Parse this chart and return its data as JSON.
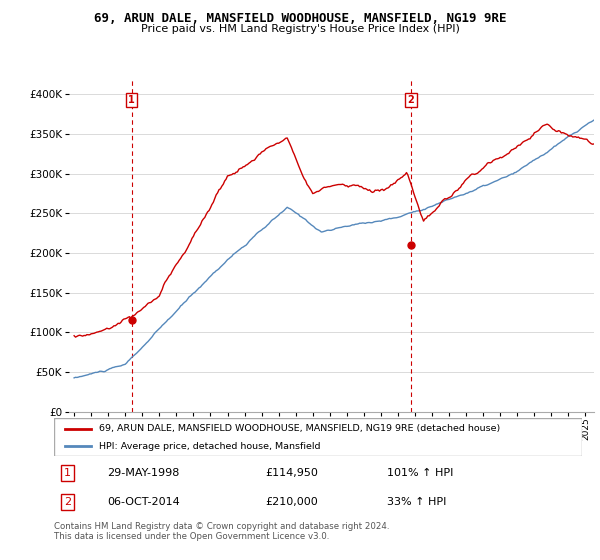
{
  "title": "69, ARUN DALE, MANSFIELD WOODHOUSE, MANSFIELD, NG19 9RE",
  "subtitle": "Price paid vs. HM Land Registry's House Price Index (HPI)",
  "legend_line1": "69, ARUN DALE, MANSFIELD WOODHOUSE, MANSFIELD, NG19 9RE (detached house)",
  "legend_line2": "HPI: Average price, detached house, Mansfield",
  "sale1_date": "29-MAY-1998",
  "sale1_price": 114950,
  "sale1_label": "£114,950",
  "sale1_pct": "101% ↑ HPI",
  "sale2_date": "06-OCT-2014",
  "sale2_price": 210000,
  "sale2_label": "£210,000",
  "sale2_pct": "33% ↑ HPI",
  "footer": "Contains HM Land Registry data © Crown copyright and database right 2024.\nThis data is licensed under the Open Government Licence v3.0.",
  "red_color": "#cc0000",
  "blue_color": "#5588bb",
  "ylim_max": 420000,
  "xlim_start": 1994.7,
  "xlim_end": 2025.5,
  "sale1_x": 1998.37,
  "sale2_x": 2014.75
}
